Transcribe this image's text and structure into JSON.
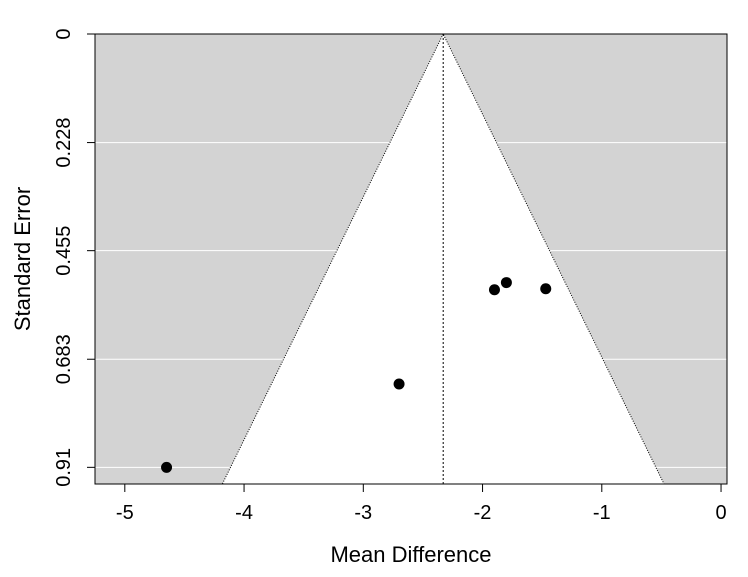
{
  "chart_data": {
    "type": "scatter",
    "subtype": "funnel-plot",
    "title": "",
    "xlabel": "Mean Difference",
    "ylabel": "Standard Error",
    "xlim": [
      -5.25,
      0.05
    ],
    "ylim": [
      0,
      0.945
    ],
    "y_reversed": true,
    "x_ticks": [
      -5,
      -4,
      -3,
      -2,
      -1,
      0
    ],
    "x_tick_labels": [
      "-5",
      "-4",
      "-3",
      "-2",
      "-1",
      "0"
    ],
    "y_ticks": [
      0,
      0.228,
      0.455,
      0.683,
      0.91
    ],
    "y_tick_labels": [
      "0",
      "0.228",
      "0.455",
      "0.683",
      "0.91"
    ],
    "pooled_estimate": -2.33,
    "funnel_z": 1.96,
    "grid": true,
    "colors": {
      "outside_funnel": "#d3d3d3",
      "inside_funnel": "#ffffff",
      "gridline": "#ffffff",
      "point": "#000000"
    },
    "points": [
      {
        "x": -4.65,
        "y": 0.91
      },
      {
        "x": -2.7,
        "y": 0.735
      },
      {
        "x": -1.9,
        "y": 0.537
      },
      {
        "x": -1.8,
        "y": 0.522
      },
      {
        "x": -1.47,
        "y": 0.535
      }
    ]
  }
}
